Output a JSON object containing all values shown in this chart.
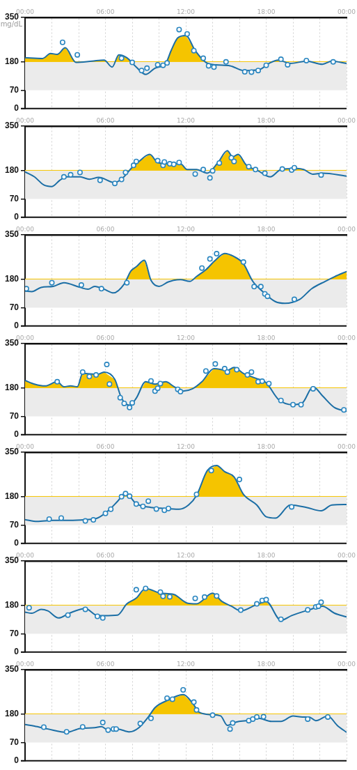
{
  "chart_data": [
    {
      "type": "line",
      "ylabel": "mg/dL",
      "xlim": [
        0,
        24
      ],
      "ylim": [
        0,
        350
      ],
      "yticks": [
        0,
        70,
        180,
        350
      ],
      "xticks": [
        {
          "value": 0,
          "label": "00:00"
        },
        {
          "value": 2,
          "label": null
        },
        {
          "value": 4,
          "label": null
        },
        {
          "value": 6,
          "label": "06:00"
        },
        {
          "value": 8,
          "label": null
        },
        {
          "value": 10,
          "label": null
        },
        {
          "value": 12,
          "label": "12:00"
        },
        {
          "value": 14,
          "label": null
        },
        {
          "value": 16,
          "label": null
        },
        {
          "value": 18,
          "label": "18:00"
        },
        {
          "value": 20,
          "label": null
        },
        {
          "value": 22,
          "label": null
        },
        {
          "value": 24,
          "label": "00:00"
        }
      ],
      "grid": "x",
      "legend": false,
      "bands": [
        {
          "axis": "y",
          "from": 70,
          "to": 180,
          "color": "#ebebeb"
        }
      ],
      "ref_lines": [
        {
          "axis": "y",
          "value": 180,
          "color": "#f5c400"
        }
      ],
      "series": [
        {
          "type": "line",
          "color": "#1b6ea5",
          "x": [
            0,
            1.3,
            1.9,
            2.4,
            3.0,
            3.8,
            5.0,
            5.9,
            6.5,
            7.0,
            7.6,
            8.3,
            9.0,
            9.7,
            10.5,
            10.9,
            11.4,
            12.0,
            12.7,
            13.5,
            14.2,
            15.3,
            16.3,
            17.5,
            18.2,
            18.9,
            19.8,
            21.0,
            22.2,
            22.9,
            24
          ],
          "values": [
            195,
            192,
            211,
            208,
            233,
            177,
            182,
            186,
            159,
            206,
            195,
            159,
            131,
            155,
            173,
            222,
            271,
            280,
            222,
            177,
            168,
            164,
            146,
            150,
            173,
            186,
            173,
            182,
            170,
            182,
            173
          ]
        },
        {
          "type": "scatter",
          "color": "#2a86c0",
          "x": [
            2.8,
            3.9,
            7.2,
            8.0,
            8.7,
            9.1,
            9.9,
            10.3,
            10.6,
            11.5,
            12.1,
            12.6,
            13.3,
            13.7,
            14.1,
            15.0,
            16.4,
            16.9,
            17.4,
            18.0,
            19.1,
            19.6,
            21.0,
            23.0
          ],
          "values": [
            254,
            206,
            193,
            177,
            146,
            155,
            168,
            166,
            175,
            303,
            286,
            222,
            193,
            164,
            159,
            179,
            141,
            140,
            146,
            166,
            189,
            168,
            184,
            179
          ]
        }
      ]
    },
    {
      "type": "line",
      "xlim": [
        0,
        24
      ],
      "ylim": [
        0,
        350
      ],
      "yticks": [
        0,
        70,
        180,
        350
      ],
      "xticks": [
        {
          "value": 0,
          "label": "00:00"
        },
        {
          "value": 2,
          "label": null
        },
        {
          "value": 4,
          "label": null
        },
        {
          "value": 6,
          "label": "06:00"
        },
        {
          "value": 8,
          "label": null
        },
        {
          "value": 10,
          "label": null
        },
        {
          "value": 12,
          "label": "12:00"
        },
        {
          "value": 14,
          "label": null
        },
        {
          "value": 16,
          "label": null
        },
        {
          "value": 18,
          "label": "18:00"
        },
        {
          "value": 20,
          "label": null
        },
        {
          "value": 22,
          "label": null
        },
        {
          "value": 24,
          "label": "00:00"
        }
      ],
      "grid": "x",
      "legend": false,
      "bands": [
        {
          "axis": "y",
          "from": 70,
          "to": 180,
          "color": "#ebebeb"
        }
      ],
      "ref_lines": [
        {
          "axis": "y",
          "value": 180,
          "color": "#f5c400"
        }
      ],
      "series": [
        {
          "type": "line",
          "color": "#1b6ea5",
          "x": [
            0,
            0.7,
            1.4,
            2.0,
            2.6,
            3.1,
            4.1,
            4.8,
            5.5,
            6.7,
            7.3,
            8.0,
            8.5,
            9.3,
            9.9,
            10.7,
            11.6,
            12.1,
            12.8,
            13.6,
            14.4,
            15.1,
            15.5,
            15.9,
            16.5,
            17.4,
            18.3,
            19.1,
            20.3,
            20.8,
            21.5,
            22.2,
            24
          ],
          "values": [
            174,
            155,
            124,
            118,
            142,
            155,
            155,
            146,
            153,
            133,
            151,
            192,
            214,
            241,
            210,
            205,
            205,
            183,
            183,
            169,
            210,
            255,
            232,
            241,
            201,
            178,
            155,
            183,
            187,
            183,
            165,
            169,
            158
          ]
        },
        {
          "type": "scatter",
          "color": "#2a86c0",
          "x": [
            2.9,
            3.4,
            4.1,
            5.6,
            6.7,
            7.2,
            7.5,
            8.1,
            8.3,
            9.9,
            10.3,
            10.4,
            10.8,
            11.1,
            11.5,
            12.7,
            13.3,
            13.8,
            14.0,
            14.5,
            15.4,
            15.6,
            16.7,
            17.2,
            17.9,
            19.2,
            19.9,
            20.1,
            22.1
          ],
          "values": [
            155,
            163,
            172,
            142,
            130,
            145,
            172,
            199,
            214,
            217,
            199,
            212,
            205,
            203,
            210,
            166,
            183,
            151,
            178,
            208,
            228,
            214,
            194,
            183,
            169,
            185,
            181,
            190,
            162
          ]
        }
      ]
    },
    {
      "type": "line",
      "xlim": [
        0,
        24
      ],
      "ylim": [
        0,
        350
      ],
      "yticks": [
        0,
        70,
        180,
        350
      ],
      "xticks": [
        {
          "value": 0,
          "label": "00:00"
        },
        {
          "value": 2,
          "label": null
        },
        {
          "value": 4,
          "label": null
        },
        {
          "value": 6,
          "label": "06:00"
        },
        {
          "value": 8,
          "label": null
        },
        {
          "value": 10,
          "label": null
        },
        {
          "value": 12,
          "label": "12:00"
        },
        {
          "value": 14,
          "label": null
        },
        {
          "value": 16,
          "label": null
        },
        {
          "value": 18,
          "label": "18:00"
        },
        {
          "value": 20,
          "label": null
        },
        {
          "value": 22,
          "label": null
        },
        {
          "value": 24,
          "label": "00:00"
        }
      ],
      "grid": "x",
      "legend": false,
      "bands": [
        {
          "axis": "y",
          "from": 70,
          "to": 180,
          "color": "#ebebeb"
        }
      ],
      "ref_lines": [
        {
          "axis": "y",
          "value": 180,
          "color": "#f5c400"
        }
      ],
      "series": [
        {
          "type": "line",
          "color": "#1b6ea5",
          "x": [
            0,
            0.5,
            1.2,
            2.1,
            2.9,
            4.1,
            4.7,
            5.2,
            5.9,
            6.6,
            7.4,
            7.9,
            8.3,
            8.9,
            9.4,
            10.0,
            10.7,
            11.6,
            12.3,
            12.8,
            13.5,
            14.2,
            14.9,
            15.6,
            16.3,
            17.0,
            17.7,
            18.7,
            19.4,
            20.5,
            21.4,
            22.4,
            23.1,
            24
          ],
          "values": [
            134,
            132,
            148,
            152,
            166,
            148,
            141,
            152,
            141,
            127,
            161,
            211,
            227,
            252,
            175,
            152,
            169,
            178,
            171,
            190,
            216,
            252,
            278,
            266,
            239,
            171,
            134,
            93,
            87,
            102,
            143,
            171,
            189,
            209
          ]
        },
        {
          "type": "scatter",
          "color": "#2a86c0",
          "x": [
            0.1,
            2.0,
            4.2,
            5.7,
            7.6,
            13.2,
            13.8,
            14.3,
            16.3,
            17.1,
            17.6,
            17.9,
            18.1,
            20.1
          ],
          "values": [
            143,
            166,
            157,
            143,
            166,
            222,
            257,
            277,
            245,
            151,
            151,
            123,
            114,
            102
          ]
        }
      ]
    },
    {
      "type": "line",
      "xlim": [
        0,
        24
      ],
      "ylim": [
        0,
        350
      ],
      "yticks": [
        0,
        70,
        180,
        350
      ],
      "xticks": [
        {
          "value": 0,
          "label": "00:00"
        },
        {
          "value": 2,
          "label": null
        },
        {
          "value": 4,
          "label": null
        },
        {
          "value": 6,
          "label": "06:00"
        },
        {
          "value": 8,
          "label": null
        },
        {
          "value": 10,
          "label": null
        },
        {
          "value": 12,
          "label": "12:00"
        },
        {
          "value": 14,
          "label": null
        },
        {
          "value": 16,
          "label": null
        },
        {
          "value": 18,
          "label": "18:00"
        },
        {
          "value": 20,
          "label": null
        },
        {
          "value": 22,
          "label": null
        },
        {
          "value": 24,
          "label": "00:00"
        }
      ],
      "grid": "x",
      "legend": false,
      "bands": [
        {
          "axis": "y",
          "from": 70,
          "to": 180,
          "color": "#ebebeb"
        }
      ],
      "ref_lines": [
        {
          "axis": "y",
          "value": 180,
          "color": "#f5c400"
        }
      ],
      "series": [
        {
          "type": "line",
          "color": "#1b6ea5",
          "x": [
            0,
            0.7,
            1.5,
            2.4,
            2.9,
            3.4,
            3.9,
            4.3,
            5.4,
            5.9,
            6.7,
            7.2,
            7.8,
            8.3,
            9.0,
            9.7,
            10.5,
            11.1,
            11.8,
            12.5,
            13.2,
            14.1,
            15.1,
            15.6,
            16.3,
            17.2,
            18.0,
            18.9,
            20.0,
            20.7,
            21.5,
            22.2,
            23.1,
            24
          ],
          "values": [
            208,
            194,
            187,
            203,
            184,
            187,
            184,
            235,
            231,
            240,
            212,
            140,
            113,
            140,
            203,
            194,
            203,
            185,
            167,
            176,
            203,
            253,
            247,
            258,
            235,
            217,
            199,
            136,
            115,
            122,
            184,
            149,
            104,
            90
          ]
        },
        {
          "type": "scatter",
          "color": "#2a86c0",
          "x": [
            2.4,
            4.3,
            4.8,
            5.3,
            6.1,
            6.3,
            7.1,
            7.4,
            7.8,
            8.0,
            9.4,
            9.7,
            9.9,
            10.1,
            11.4,
            11.6,
            13.5,
            14.2,
            14.9,
            15.1,
            15.8,
            16.6,
            16.9,
            17.4,
            17.7,
            18.2,
            19.1,
            20.0,
            20.6,
            21.5,
            23.8
          ],
          "values": [
            203,
            240,
            223,
            229,
            269,
            194,
            142,
            120,
            104,
            122,
            206,
            167,
            178,
            196,
            174,
            165,
            244,
            271,
            253,
            240,
            249,
            229,
            240,
            203,
            205,
            196,
            131,
            115,
            115,
            176,
            95
          ]
        }
      ]
    },
    {
      "type": "line",
      "xlim": [
        0,
        24
      ],
      "ylim": [
        0,
        350
      ],
      "yticks": [
        0,
        70,
        180,
        350
      ],
      "xticks": [
        {
          "value": 0,
          "label": "00:00"
        },
        {
          "value": 2,
          "label": null
        },
        {
          "value": 4,
          "label": null
        },
        {
          "value": 6,
          "label": "06:00"
        },
        {
          "value": 8,
          "label": null
        },
        {
          "value": 10,
          "label": null
        },
        {
          "value": 12,
          "label": "12:00"
        },
        {
          "value": 14,
          "label": null
        },
        {
          "value": 16,
          "label": null
        },
        {
          "value": 18,
          "label": "18:00"
        },
        {
          "value": 20,
          "label": null
        },
        {
          "value": 22,
          "label": null
        },
        {
          "value": 24,
          "label": "00:00"
        }
      ],
      "grid": "x",
      "legend": false,
      "bands": [
        {
          "axis": "y",
          "from": 70,
          "to": 180,
          "color": "#ebebeb"
        }
      ],
      "ref_lines": [
        {
          "axis": "y",
          "value": 180,
          "color": "#f5c400"
        }
      ],
      "series": [
        {
          "type": "line",
          "color": "#1b6ea5",
          "x": [
            0,
            0.9,
            2.1,
            3.3,
            4.5,
            5.4,
            6.2,
            6.9,
            7.5,
            8.3,
            9.4,
            10.4,
            11.5,
            12.2,
            12.8,
            13.6,
            14.3,
            14.9,
            15.6,
            16.3,
            17.3,
            18.0,
            18.7,
            19.8,
            21.0,
            22.1,
            22.9,
            24
          ],
          "values": [
            91,
            84,
            88,
            88,
            91,
            97,
            125,
            161,
            193,
            152,
            138,
            134,
            131,
            147,
            184,
            279,
            299,
            275,
            255,
            188,
            147,
            102,
            97,
            147,
            138,
            125,
            147,
            149
          ]
        },
        {
          "type": "scatter",
          "color": "#2a86c0",
          "x": [
            1.8,
            2.7,
            4.5,
            5.1,
            6.0,
            6.4,
            7.2,
            7.5,
            7.8,
            8.3,
            8.8,
            9.2,
            9.8,
            10.4,
            10.7,
            12.8,
            13.9,
            16.0,
            19.9
          ],
          "values": [
            93,
            97,
            86,
            90,
            115,
            131,
            179,
            191,
            181,
            151,
            142,
            162,
            132,
            127,
            134,
            188,
            279,
            245,
            140
          ]
        }
      ]
    },
    {
      "type": "line",
      "xlim": [
        0,
        24
      ],
      "ylim": [
        0,
        350
      ],
      "yticks": [
        0,
        70,
        180,
        350
      ],
      "xticks": [
        {
          "value": 0,
          "label": "00:00"
        },
        {
          "value": 2,
          "label": null
        },
        {
          "value": 4,
          "label": null
        },
        {
          "value": 6,
          "label": "06:00"
        },
        {
          "value": 8,
          "label": null
        },
        {
          "value": 10,
          "label": null
        },
        {
          "value": 12,
          "label": "12:00"
        },
        {
          "value": 14,
          "label": null
        },
        {
          "value": 16,
          "label": null
        },
        {
          "value": 18,
          "label": "18:00"
        },
        {
          "value": 20,
          "label": null
        },
        {
          "value": 22,
          "label": null
        },
        {
          "value": 24,
          "label": "00:00"
        }
      ],
      "grid": "x",
      "legend": false,
      "bands": [
        {
          "axis": "y",
          "from": 70,
          "to": 180,
          "color": "#ebebeb"
        }
      ],
      "ref_lines": [
        {
          "axis": "y",
          "value": 180,
          "color": "#f5c400"
        }
      ],
      "series": [
        {
          "type": "line",
          "color": "#1b6ea5",
          "x": [
            0,
            0.5,
            1.2,
            1.7,
            2.5,
            3.3,
            4.5,
            5.4,
            5.9,
            6.9,
            7.6,
            8.3,
            9.0,
            10.1,
            11.1,
            12.1,
            12.8,
            14.0,
            14.7,
            15.4,
            16.1,
            17.2,
            18.0,
            19.1,
            19.9,
            21.2,
            22.2,
            23.1,
            24
          ],
          "values": [
            153,
            149,
            164,
            158,
            131,
            149,
            167,
            140,
            140,
            142,
            185,
            207,
            244,
            226,
            221,
            188,
            185,
            226,
            194,
            176,
            158,
            180,
            194,
            122,
            140,
            162,
            176,
            149,
            135
          ]
        },
        {
          "type": "scatter",
          "color": "#2a86c0",
          "x": [
            0.3,
            3.2,
            4.5,
            5.4,
            5.8,
            8.3,
            9.0,
            10.1,
            10.3,
            10.8,
            12.7,
            13.4,
            14.3,
            16.1,
            17.3,
            17.7,
            18.0,
            19.1,
            21.1,
            21.7,
            21.9,
            22.1
          ],
          "values": [
            170,
            142,
            164,
            137,
            131,
            239,
            244,
            230,
            214,
            212,
            206,
            211,
            215,
            161,
            185,
            198,
            201,
            126,
            162,
            173,
            176,
            191
          ]
        }
      ]
    },
    {
      "type": "line",
      "xlim": [
        0,
        24
      ],
      "ylim": [
        0,
        350
      ],
      "yticks": [
        0,
        70,
        180,
        350
      ],
      "xticks": [
        {
          "value": 0,
          "label": "00:00"
        },
        {
          "value": 2,
          "label": null
        },
        {
          "value": 4,
          "label": null
        },
        {
          "value": 6,
          "label": "06:00"
        },
        {
          "value": 8,
          "label": null
        },
        {
          "value": 10,
          "label": null
        },
        {
          "value": 12,
          "label": "12:00"
        },
        {
          "value": 14,
          "label": null
        },
        {
          "value": 16,
          "label": null
        },
        {
          "value": 18,
          "label": "18:00"
        },
        {
          "value": 20,
          "label": null
        },
        {
          "value": 22,
          "label": null
        },
        {
          "value": 24,
          "label": "00:00"
        }
      ],
      "grid": "x",
      "legend": false,
      "bands": [
        {
          "axis": "y",
          "from": 70,
          "to": 180,
          "color": "#ebebeb"
        }
      ],
      "ref_lines": [
        {
          "axis": "y",
          "value": 180,
          "color": "#f5c400"
        }
      ],
      "series": [
        {
          "type": "line",
          "color": "#1b6ea5",
          "x": [
            0,
            0.7,
            1.7,
            3.1,
            4.1,
            5.2,
            5.7,
            6.2,
            6.9,
            7.8,
            8.5,
            9.2,
            9.7,
            10.6,
            11.8,
            12.5,
            13.0,
            13.9,
            14.6,
            15.1,
            15.8,
            16.5,
            17.4,
            18.4,
            19.1,
            20.0,
            20.7,
            21.2,
            21.7,
            22.6,
            23.3,
            24
          ],
          "values": [
            139,
            133,
            122,
            109,
            124,
            127,
            131,
            118,
            122,
            111,
            127,
            168,
            204,
            231,
            254,
            222,
            186,
            177,
            172,
            136,
            149,
            154,
            163,
            151,
            151,
            172,
            168,
            168,
            154,
            172,
            136,
            109
          ]
        },
        {
          "type": "scatter",
          "color": "#2a86c0",
          "x": [
            1.4,
            3.1,
            4.3,
            5.8,
            6.2,
            6.6,
            6.8,
            8.6,
            9.4,
            10.6,
            11.0,
            11.8,
            12.6,
            12.8,
            14.0,
            15.3,
            15.5,
            16.7,
            17.0,
            17.3,
            17.8,
            21.1,
            22.6
          ],
          "values": [
            129,
            111,
            130,
            147,
            118,
            122,
            122,
            143,
            163,
            240,
            236,
            272,
            225,
            195,
            175,
            122,
            145,
            154,
            160,
            168,
            169,
            160,
            168
          ]
        }
      ]
    }
  ]
}
